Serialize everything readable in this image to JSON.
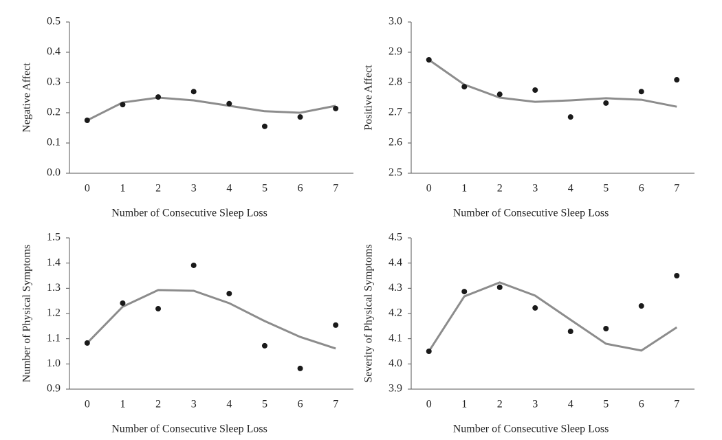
{
  "chart_data": [
    {
      "type": "line",
      "ylabel": "Negative Affect",
      "xlabel": "Number of Consecutive Sleep Loss",
      "categories": [
        "0",
        "1",
        "2",
        "3",
        "4",
        "5",
        "6",
        "7"
      ],
      "ylim": [
        0,
        0.5
      ],
      "yticks": [
        {
          "value": 0,
          "label": "0.0"
        },
        0.1,
        0.2,
        0.3,
        0.4,
        0.5
      ],
      "series": [
        {
          "type": "scatter",
          "color": "#1a1a1a",
          "values": [
            0.175,
            0.227,
            0.252,
            0.27,
            0.23,
            0.155,
            0.186,
            0.214
          ]
        },
        {
          "type": "line",
          "color": "#8c8c8c",
          "values": [
            0.175,
            0.234,
            0.25,
            0.241,
            0.223,
            0.205,
            0.2,
            0.223
          ]
        }
      ]
    },
    {
      "type": "line",
      "ylabel": "Positive Affect",
      "xlabel": "Number of Consecutive Sleep Loss",
      "categories": [
        "0",
        "1",
        "2",
        "3",
        "4",
        "5",
        "6",
        "7"
      ],
      "ylim": [
        2.5,
        3
      ],
      "yticks": [
        2.5,
        2.6,
        2.7,
        2.8,
        2.9,
        {
          "value": 3,
          "label": "3.0"
        }
      ],
      "series": [
        {
          "type": "scatter",
          "color": "#1a1a1a",
          "values": [
            2.875,
            2.786,
            2.761,
            2.775,
            2.686,
            2.732,
            2.77,
            2.809
          ]
        },
        {
          "type": "line",
          "color": "#8c8c8c",
          "values": [
            2.875,
            2.793,
            2.75,
            2.736,
            2.741,
            2.748,
            2.743,
            2.72
          ]
        }
      ]
    },
    {
      "type": "line",
      "ylabel": "Number of Physical Symptoms",
      "xlabel": "Number of Consecutive Sleep Loss",
      "categories": [
        "0",
        "1",
        "2",
        "3",
        "4",
        "5",
        "6",
        "7"
      ],
      "ylim": [
        0.9,
        1.5
      ],
      "yticks": [
        0.9,
        {
          "value": 1,
          "label": "1.0"
        },
        1.1,
        1.2,
        1.3,
        1.4,
        1.5
      ],
      "series": [
        {
          "type": "scatter",
          "color": "#1a1a1a",
          "values": [
            1.083,
            1.241,
            1.219,
            1.391,
            1.279,
            1.072,
            0.982,
            1.154
          ]
        },
        {
          "type": "line",
          "color": "#8c8c8c",
          "values": [
            1.083,
            1.227,
            1.293,
            1.29,
            1.241,
            1.17,
            1.107,
            1.061
          ]
        }
      ]
    },
    {
      "type": "line",
      "ylabel": "Severity of Physical Symptoms",
      "xlabel": "Number of Consecutive Sleep Loss",
      "categories": [
        "0",
        "1",
        "2",
        "3",
        "4",
        "5",
        "6",
        "7"
      ],
      "ylim": [
        3.9,
        4.5
      ],
      "yticks": [
        3.9,
        {
          "value": 4,
          "label": "4.0"
        },
        4.1,
        4.2,
        4.3,
        4.4,
        4.5
      ],
      "series": [
        {
          "type": "scatter",
          "color": "#1a1a1a",
          "values": [
            4.05,
            4.287,
            4.304,
            4.222,
            4.129,
            4.14,
            4.23,
            4.35
          ]
        },
        {
          "type": "line",
          "color": "#8c8c8c",
          "values": [
            4.05,
            4.268,
            4.323,
            4.271,
            4.175,
            4.08,
            4.053,
            4.145
          ]
        }
      ]
    }
  ]
}
